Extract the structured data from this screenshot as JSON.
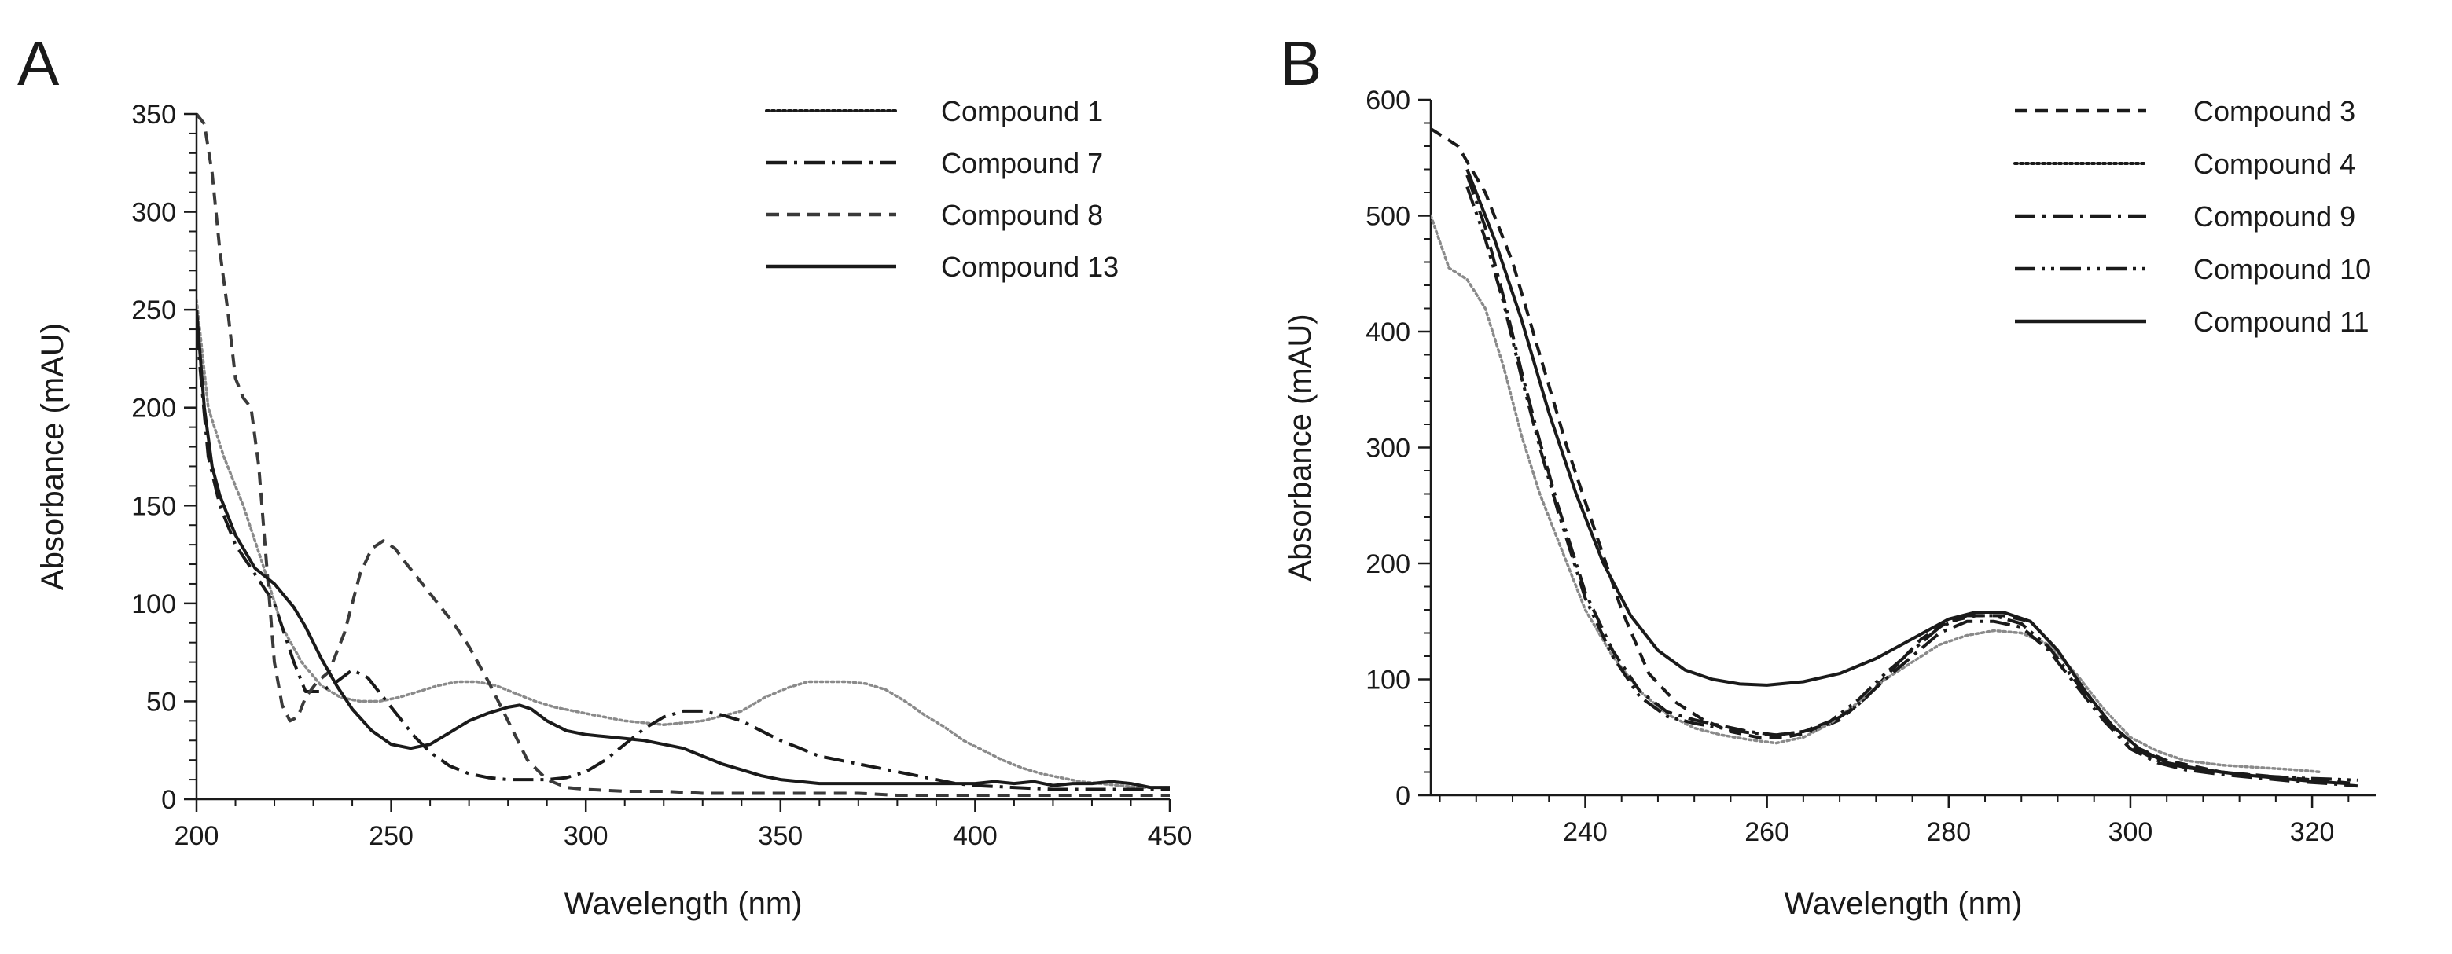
{
  "chart_data": [
    {
      "type": "line",
      "panel": "A",
      "xlabel": "Wavelength (nm)",
      "ylabel": "Absorbance (mAU)",
      "xlim": [
        200,
        450
      ],
      "ylim": [
        0,
        350
      ],
      "xticks": [
        200,
        250,
        300,
        350,
        400,
        450
      ],
      "yticks": [
        0,
        50,
        100,
        150,
        200,
        250,
        300,
        350
      ],
      "grid": false,
      "legend": "top-right",
      "series": [
        {
          "name": "Compound 1",
          "style": "dotted",
          "color": "#8a8a8a",
          "x": [
            200,
            203,
            207,
            212,
            217,
            222,
            227,
            232,
            237,
            242,
            247,
            252,
            257,
            262,
            267,
            272,
            277,
            282,
            287,
            292,
            297,
            302,
            310,
            320,
            330,
            340,
            346,
            352,
            357,
            362,
            367,
            372,
            377,
            382,
            387,
            392,
            397,
            402,
            407,
            412,
            417,
            422,
            427,
            432,
            437,
            442,
            447,
            450
          ],
          "y": [
            255,
            200,
            175,
            150,
            120,
            88,
            70,
            58,
            52,
            50,
            50,
            52,
            55,
            58,
            60,
            60,
            58,
            54,
            50,
            47,
            45,
            43,
            40,
            38,
            40,
            45,
            52,
            57,
            60,
            60,
            60,
            59,
            56,
            50,
            43,
            37,
            30,
            25,
            20,
            16,
            13,
            11,
            9,
            8,
            7,
            6,
            6,
            6
          ]
        },
        {
          "name": "Compound 7",
          "style": "dashdot",
          "color": "#1a1a1a",
          "x": [
            200,
            203,
            206,
            210,
            215,
            220,
            225,
            228,
            232,
            236,
            240,
            244,
            248,
            252,
            256,
            260,
            265,
            270,
            275,
            280,
            285,
            290,
            295,
            300,
            305,
            310,
            315,
            320,
            325,
            330,
            335,
            340,
            345,
            350,
            355,
            360,
            365,
            370,
            375,
            380,
            385,
            390,
            395,
            400,
            410,
            420,
            430,
            440,
            450
          ],
          "y": [
            240,
            175,
            150,
            130,
            115,
            100,
            70,
            55,
            55,
            60,
            66,
            62,
            52,
            42,
            32,
            24,
            17,
            13,
            11,
            10,
            10,
            10,
            11,
            14,
            20,
            28,
            36,
            42,
            45,
            45,
            43,
            40,
            35,
            30,
            26,
            22,
            20,
            18,
            16,
            14,
            12,
            10,
            8,
            7,
            6,
            5,
            5,
            5,
            5
          ]
        },
        {
          "name": "Compound 8",
          "style": "dashed",
          "color": "#3a3a3a",
          "x": [
            200,
            202,
            204,
            206,
            208,
            210,
            212,
            214,
            216,
            218,
            220,
            222,
            224,
            226,
            228,
            231,
            234,
            238,
            242,
            245,
            248,
            251,
            254,
            258,
            262,
            266,
            270,
            275,
            280,
            285,
            290,
            295,
            300,
            310,
            320,
            330,
            340,
            350,
            360,
            370,
            380,
            390,
            400,
            420,
            450
          ],
          "y": [
            350,
            345,
            320,
            280,
            250,
            215,
            205,
            200,
            170,
            120,
            70,
            48,
            40,
            42,
            52,
            60,
            65,
            85,
            115,
            128,
            132,
            128,
            120,
            110,
            100,
            90,
            78,
            60,
            40,
            20,
            10,
            6,
            5,
            4,
            4,
            3,
            3,
            3,
            3,
            3,
            2,
            2,
            2,
            2,
            2
          ]
        },
        {
          "name": "Compound 13",
          "style": "solid",
          "color": "#1a1a1a",
          "x": [
            200,
            202,
            204,
            206,
            210,
            215,
            220,
            225,
            228,
            232,
            236,
            240,
            245,
            250,
            255,
            260,
            265,
            270,
            275,
            280,
            283,
            286,
            290,
            295,
            300,
            305,
            310,
            315,
            320,
            325,
            330,
            335,
            340,
            345,
            350,
            360,
            370,
            380,
            390,
            400,
            405,
            410,
            415,
            420,
            425,
            430,
            435,
            440,
            445,
            450
          ],
          "y": [
            250,
            200,
            170,
            155,
            135,
            118,
            110,
            98,
            88,
            72,
            58,
            46,
            35,
            28,
            26,
            28,
            34,
            40,
            44,
            47,
            48,
            46,
            40,
            35,
            33,
            32,
            31,
            30,
            28,
            26,
            22,
            18,
            15,
            12,
            10,
            8,
            8,
            8,
            8,
            8,
            9,
            8,
            9,
            7,
            8,
            8,
            9,
            8,
            6,
            6
          ]
        }
      ]
    },
    {
      "type": "line",
      "panel": "B",
      "xlabel": "Wavelength (nm)",
      "ylabel": "Absorbance (mAU)",
      "xlim": [
        223,
        327
      ],
      "ylim": [
        0,
        600
      ],
      "xticks": [
        240,
        260,
        280,
        300,
        320
      ],
      "yticks": [
        0,
        100,
        200,
        300,
        400,
        500,
        600
      ],
      "grid": false,
      "legend": "top-right",
      "series": [
        {
          "name": "Compound 3",
          "style": "dashed",
          "color": "#1a1a1a",
          "x": [
            223,
            226,
            229,
            232,
            235,
            238,
            241,
            244,
            247,
            250,
            253,
            256,
            259,
            262,
            265,
            268,
            271,
            274,
            277,
            280,
            283,
            286,
            289,
            292,
            295,
            298,
            301,
            304,
            307,
            310,
            313,
            316,
            319,
            322,
            325
          ],
          "y": [
            575,
            560,
            520,
            460,
            380,
            300,
            230,
            160,
            105,
            80,
            65,
            55,
            50,
            50,
            55,
            65,
            85,
            110,
            135,
            150,
            155,
            155,
            150,
            125,
            90,
            60,
            40,
            30,
            25,
            20,
            18,
            16,
            14,
            12,
            10
          ]
        },
        {
          "name": "Compound 4",
          "style": "dotted",
          "color": "#8a8a8a",
          "x": [
            223,
            225,
            227,
            229,
            231,
            233,
            235,
            237,
            240,
            243,
            246,
            249,
            252,
            255,
            258,
            261,
            264,
            267,
            270,
            273,
            276,
            279,
            282,
            285,
            288,
            291,
            294,
            297,
            300,
            303,
            306,
            310,
            314,
            318,
            321
          ],
          "y": [
            500,
            455,
            445,
            420,
            370,
            310,
            260,
            220,
            160,
            120,
            90,
            70,
            58,
            52,
            48,
            45,
            50,
            62,
            80,
            100,
            115,
            130,
            138,
            142,
            140,
            130,
            105,
            75,
            50,
            38,
            30,
            26,
            24,
            22,
            20
          ]
        },
        {
          "name": "Compound 9",
          "style": "dashdot",
          "color": "#1a1a1a",
          "x": [
            227,
            229,
            231,
            233,
            235,
            237,
            240,
            243,
            246,
            249,
            252,
            255,
            258,
            261,
            264,
            267,
            270,
            273,
            276,
            279,
            282,
            285,
            288,
            291,
            294,
            297,
            300,
            303,
            306,
            310,
            314,
            318,
            322,
            325
          ],
          "y": [
            535,
            490,
            430,
            365,
            305,
            250,
            175,
            125,
            90,
            72,
            65,
            60,
            55,
            52,
            55,
            62,
            78,
            100,
            120,
            140,
            150,
            150,
            145,
            125,
            95,
            65,
            40,
            28,
            22,
            18,
            15,
            12,
            10,
            8
          ]
        },
        {
          "name": "Compound 10",
          "style": "dashdotdot",
          "color": "#1a1a1a",
          "x": [
            227,
            229,
            231,
            233,
            235,
            237,
            240,
            243,
            246,
            249,
            252,
            255,
            258,
            261,
            264,
            267,
            270,
            273,
            276,
            279,
            282,
            285,
            288,
            291,
            294,
            297,
            300,
            303,
            306,
            310,
            314,
            318,
            322,
            325
          ],
          "y": [
            525,
            480,
            425,
            360,
            300,
            245,
            170,
            120,
            85,
            68,
            62,
            58,
            54,
            52,
            55,
            64,
            82,
            105,
            125,
            145,
            155,
            155,
            148,
            128,
            98,
            68,
            42,
            30,
            24,
            20,
            17,
            15,
            14,
            13
          ]
        },
        {
          "name": "Compound 11",
          "style": "solid",
          "color": "#1a1a1a",
          "x": [
            227,
            230,
            233,
            236,
            239,
            242,
            245,
            248,
            251,
            254,
            257,
            260,
            264,
            268,
            272,
            276,
            280,
            283,
            286,
            289,
            292,
            295,
            298,
            301,
            304,
            308,
            312,
            316,
            320,
            324
          ],
          "y": [
            540,
            480,
            410,
            330,
            260,
            200,
            155,
            125,
            108,
            100,
            96,
            95,
            98,
            105,
            118,
            135,
            152,
            158,
            158,
            150,
            125,
            90,
            60,
            40,
            28,
            22,
            18,
            15,
            12,
            10
          ]
        }
      ]
    }
  ]
}
